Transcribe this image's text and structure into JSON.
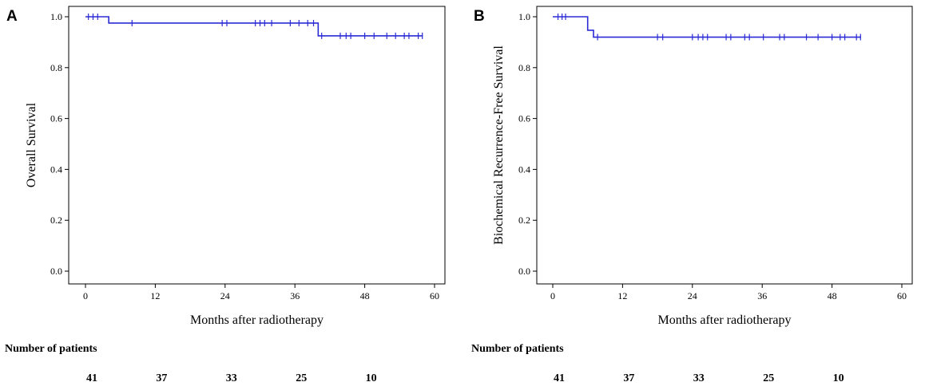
{
  "chart_data": [
    {
      "type": "line",
      "panel": "A",
      "title": "",
      "xlabel": "Months after radiotherapy",
      "ylabel": "Overall Survival",
      "xlim": [
        0,
        60
      ],
      "ylim": [
        0.0,
        1.0
      ],
      "xticks": [
        0,
        12,
        24,
        36,
        48,
        60
      ],
      "xtick_labels": [
        "0",
        "12",
        "24",
        "36",
        "48",
        "60"
      ],
      "yticks": [
        0.0,
        0.2,
        0.4,
        0.6,
        0.8,
        1.0
      ],
      "ytick_labels": [
        "0.0",
        "0.2",
        "0.4",
        "0.6",
        "0.8",
        "1.0"
      ],
      "series": [
        {
          "name": "Overall Survival",
          "color": "#2b2bd6",
          "steps": [
            [
              0,
              1.0
            ],
            [
              4,
              0.975
            ],
            [
              40,
              0.925
            ],
            [
              58,
              0.925
            ]
          ],
          "censored": [
            [
              0.5,
              1.0
            ],
            [
              1.3,
              1.0
            ],
            [
              2.1,
              1.0
            ],
            [
              8,
              0.975
            ],
            [
              23.5,
              0.975
            ],
            [
              24.3,
              0.975
            ],
            [
              29.2,
              0.975
            ],
            [
              30,
              0.975
            ],
            [
              30.8,
              0.975
            ],
            [
              32,
              0.975
            ],
            [
              35.2,
              0.975
            ],
            [
              36.7,
              0.975
            ],
            [
              38.2,
              0.975
            ],
            [
              39.2,
              0.975
            ],
            [
              40.6,
              0.925
            ],
            [
              43.8,
              0.925
            ],
            [
              44.8,
              0.925
            ],
            [
              45.6,
              0.925
            ],
            [
              48,
              0.925
            ],
            [
              49.6,
              0.925
            ],
            [
              51.8,
              0.925
            ],
            [
              53.3,
              0.925
            ],
            [
              54.8,
              0.925
            ],
            [
              55.6,
              0.925
            ],
            [
              57.2,
              0.925
            ],
            [
              57.9,
              0.925
            ]
          ]
        }
      ],
      "risk_table": {
        "title": "Number of patients",
        "times": [
          0,
          12,
          24,
          36,
          48
        ],
        "values": [
          "41",
          "37",
          "33",
          "25",
          "10"
        ]
      }
    },
    {
      "type": "line",
      "panel": "B",
      "title": "",
      "xlabel": "Months after radiotherapy",
      "ylabel": "Biochemical Recurrence-Free Survival",
      "xlim": [
        0,
        60
      ],
      "ylim": [
        0.0,
        1.0
      ],
      "xticks": [
        0,
        12,
        24,
        36,
        48,
        60
      ],
      "xtick_labels": [
        "0",
        "12",
        "24",
        "36",
        "48",
        "60"
      ],
      "yticks": [
        0.0,
        0.2,
        0.4,
        0.6,
        0.8,
        1.0
      ],
      "ytick_labels": [
        "0.0",
        "0.2",
        "0.4",
        "0.6",
        "0.8",
        "1.0"
      ],
      "series": [
        {
          "name": "Biochemical Recurrence-Free Survival",
          "color": "#2b2bd6",
          "steps": [
            [
              0,
              1.0
            ],
            [
              6,
              0.947
            ],
            [
              7,
              0.92
            ],
            [
              53,
              0.92
            ]
          ],
          "censored": [
            [
              0.9,
              1.0
            ],
            [
              1.6,
              1.0
            ],
            [
              2.2,
              1.0
            ],
            [
              7.7,
              0.92
            ],
            [
              18,
              0.92
            ],
            [
              18.9,
              0.92
            ],
            [
              24,
              0.92
            ],
            [
              25,
              0.92
            ],
            [
              25.8,
              0.92
            ],
            [
              26.6,
              0.92
            ],
            [
              29.8,
              0.92
            ],
            [
              30.6,
              0.92
            ],
            [
              33,
              0.92
            ],
            [
              33.8,
              0.92
            ],
            [
              36.2,
              0.92
            ],
            [
              39,
              0.92
            ],
            [
              39.8,
              0.92
            ],
            [
              43.6,
              0.92
            ],
            [
              45.6,
              0.92
            ],
            [
              48,
              0.92
            ],
            [
              49.4,
              0.92
            ],
            [
              50.2,
              0.92
            ],
            [
              52.2,
              0.92
            ],
            [
              52.9,
              0.92
            ]
          ]
        }
      ],
      "risk_table": {
        "title": "Number of patients",
        "times": [
          0,
          12,
          24,
          36,
          48
        ],
        "values": [
          "41",
          "37",
          "33",
          "25",
          "10"
        ]
      }
    }
  ]
}
